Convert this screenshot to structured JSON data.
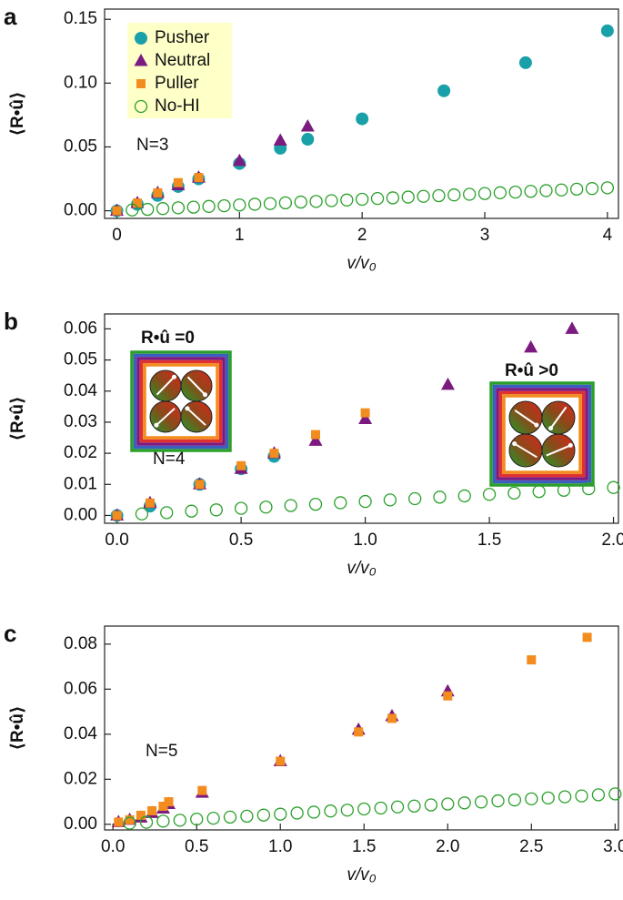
{
  "chart_data": [
    {
      "type": "scatter",
      "panel": "a",
      "y_label": "⟨R•û⟩",
      "x_label": "v/v₀",
      "annotation": "N=3",
      "legend": "upper left",
      "legend_color": "#ffffc8",
      "xlim": [
        -0.1,
        4.09
      ],
      "ylim": [
        -0.006,
        0.158
      ],
      "xticks": [
        0,
        1,
        2,
        3,
        4
      ],
      "yticks": [
        {
          "value": 0,
          "label": "0.00"
        },
        0.05,
        {
          "value": 0.1,
          "label": "0.10"
        },
        0.15
      ],
      "series": [
        {
          "name": "Pusher",
          "color": "#1aa0a8",
          "marker": "circle",
          "x": [
            0,
            0.167,
            0.333,
            0.5,
            0.667,
            1,
            1.333,
            1.556,
            2,
            2.667,
            3.333,
            4
          ],
          "values": [
            0,
            0.005,
            0.012,
            0.019,
            0.025,
            0.037,
            0.049,
            0.056,
            0.072,
            0.094,
            0.116,
            0.141
          ]
        },
        {
          "name": "Neutral",
          "color": "#7b1a7f",
          "marker": "triangle",
          "x": [
            0,
            0.167,
            0.333,
            0.5,
            0.667,
            1,
            1.333,
            1.556
          ],
          "values": [
            0,
            0.006,
            0.014,
            0.02,
            0.026,
            0.039,
            0.055,
            0.066
          ]
        },
        {
          "name": "Puller",
          "color": "#f28c1e",
          "marker": "square",
          "x": [
            0,
            0.167,
            0.333,
            0.5,
            0.667
          ],
          "values": [
            0,
            0.006,
            0.014,
            0.022,
            0.026
          ]
        },
        {
          "name": "No-HI",
          "color": "#2aa02a",
          "marker": "open-circle",
          "x": [
            0.125,
            0.25,
            0.375,
            0.5,
            0.625,
            0.75,
            0.875,
            1,
            1.125,
            1.25,
            1.375,
            1.5,
            1.625,
            1.75,
            1.875,
            2,
            2.125,
            2.25,
            2.375,
            2.5,
            2.625,
            2.75,
            2.875,
            3,
            3.125,
            3.25,
            3.375,
            3.5,
            3.625,
            3.75,
            3.875,
            4
          ],
          "values": [
            0.0006,
            0.0011,
            0.0017,
            0.0023,
            0.0028,
            0.0034,
            0.0039,
            0.0045,
            0.0051,
            0.0056,
            0.0062,
            0.0068,
            0.0073,
            0.0079,
            0.0084,
            0.009,
            0.0096,
            0.0101,
            0.0107,
            0.0113,
            0.0118,
            0.0124,
            0.0129,
            0.0135,
            0.0141,
            0.0146,
            0.0152,
            0.0158,
            0.0163,
            0.0169,
            0.0174,
            0.018
          ]
        }
      ]
    },
    {
      "type": "scatter",
      "panel": "b",
      "y_label": "⟨R•û⟩",
      "x_label": "v/v₀",
      "annotation": "N=4",
      "insets": [
        "R•û =0",
        "R•û >0"
      ],
      "xlim": [
        -0.05,
        2.02
      ],
      "ylim": [
        -0.0025,
        0.0648
      ],
      "xticks": [
        {
          "value": 0,
          "label": "0.0"
        },
        0.5,
        {
          "value": 1,
          "label": "1.0"
        },
        1.5,
        {
          "value": 2,
          "label": "2.0"
        }
      ],
      "yticks": [
        {
          "value": 0,
          "label": "0.00"
        },
        0.01,
        0.02,
        0.03,
        0.04,
        0.05,
        0.06
      ],
      "series": [
        {
          "name": "Pusher",
          "color": "#1aa0a8",
          "marker": "circle",
          "x": [
            0,
            0.133,
            0.333,
            0.5,
            0.633
          ],
          "values": [
            0,
            0.003,
            0.01,
            0.015,
            0.019
          ]
        },
        {
          "name": "Neutral",
          "color": "#7b1a7f",
          "marker": "triangle",
          "x": [
            0,
            0.133,
            0.333,
            0.5,
            0.633,
            0.8,
            1,
            1.333,
            1.667,
            1.833
          ],
          "values": [
            0,
            0.004,
            0.01,
            0.015,
            0.02,
            0.024,
            0.031,
            0.042,
            0.054,
            0.06
          ]
        },
        {
          "name": "Puller",
          "color": "#f28c1e",
          "marker": "square",
          "x": [
            0,
            0.133,
            0.333,
            0.5,
            0.633,
            0.8,
            1
          ],
          "values": [
            0,
            0.004,
            0.01,
            0.016,
            0.02,
            0.026,
            0.033
          ]
        },
        {
          "name": "No-HI",
          "color": "#2aa02a",
          "marker": "open-circle",
          "x": [
            0.1,
            0.2,
            0.3,
            0.4,
            0.5,
            0.6,
            0.7,
            0.8,
            0.9,
            1,
            1.1,
            1.2,
            1.3,
            1.4,
            1.5,
            1.6,
            1.7,
            1.8,
            1.9,
            2
          ],
          "values": [
            0.0005,
            0.0009,
            0.0014,
            0.0018,
            0.0023,
            0.0027,
            0.0032,
            0.0036,
            0.0041,
            0.0045,
            0.005,
            0.0054,
            0.0059,
            0.0063,
            0.0068,
            0.0072,
            0.0077,
            0.0081,
            0.0086,
            0.009
          ]
        }
      ]
    },
    {
      "type": "scatter",
      "panel": "c",
      "y_label": "⟨R•û⟩",
      "x_label": "v/v₀",
      "annotation": "N=5",
      "xlim": [
        -0.05,
        3.02
      ],
      "ylim": [
        -0.0025,
        0.088
      ],
      "xticks": [
        {
          "value": 0,
          "label": "0.0"
        },
        0.5,
        {
          "value": 1,
          "label": "1.0"
        },
        1.5,
        {
          "value": 2,
          "label": "2.0"
        },
        2.5,
        {
          "value": 3,
          "label": "3.0"
        }
      ],
      "yticks": [
        {
          "value": 0,
          "label": "0.00"
        },
        0.02,
        0.04,
        0.06,
        0.08
      ],
      "series": [
        {
          "name": "Neutral",
          "color": "#7b1a7f",
          "marker": "triangle",
          "x": [
            0.033,
            0.1,
            0.167,
            0.233,
            0.3,
            0.333,
            0.533,
            1,
            1.467,
            1.667,
            2
          ],
          "values": [
            0.001,
            0.002,
            0.003,
            0.005,
            0.007,
            0.009,
            0.014,
            0.028,
            0.042,
            0.048,
            0.059
          ]
        },
        {
          "name": "Puller",
          "color": "#f28c1e",
          "marker": "square",
          "x": [
            0.033,
            0.1,
            0.167,
            0.233,
            0.3,
            0.333,
            0.533,
            1,
            1.467,
            1.667,
            2,
            2.5,
            2.833
          ],
          "values": [
            0.001,
            0.002,
            0.004,
            0.006,
            0.008,
            0.01,
            0.015,
            0.028,
            0.041,
            0.047,
            0.057,
            0.073,
            0.083
          ]
        },
        {
          "name": "No-HI",
          "color": "#2aa02a",
          "marker": "open-circle",
          "x": [
            0.1,
            0.2,
            0.3,
            0.4,
            0.5,
            0.6,
            0.7,
            0.8,
            0.9,
            1,
            1.1,
            1.2,
            1.3,
            1.4,
            1.5,
            1.6,
            1.7,
            1.8,
            1.9,
            2,
            2.1,
            2.2,
            2.3,
            2.4,
            2.5,
            2.6,
            2.7,
            2.8,
            2.9,
            3
          ],
          "values": [
            0.0005,
            0.0009,
            0.0014,
            0.0018,
            0.0023,
            0.0027,
            0.0032,
            0.0036,
            0.0041,
            0.0045,
            0.005,
            0.0054,
            0.0059,
            0.0063,
            0.0068,
            0.0072,
            0.0077,
            0.0081,
            0.0086,
            0.009,
            0.0095,
            0.0099,
            0.0104,
            0.0108,
            0.0113,
            0.0117,
            0.0122,
            0.0126,
            0.0131,
            0.0135
          ]
        }
      ]
    }
  ]
}
